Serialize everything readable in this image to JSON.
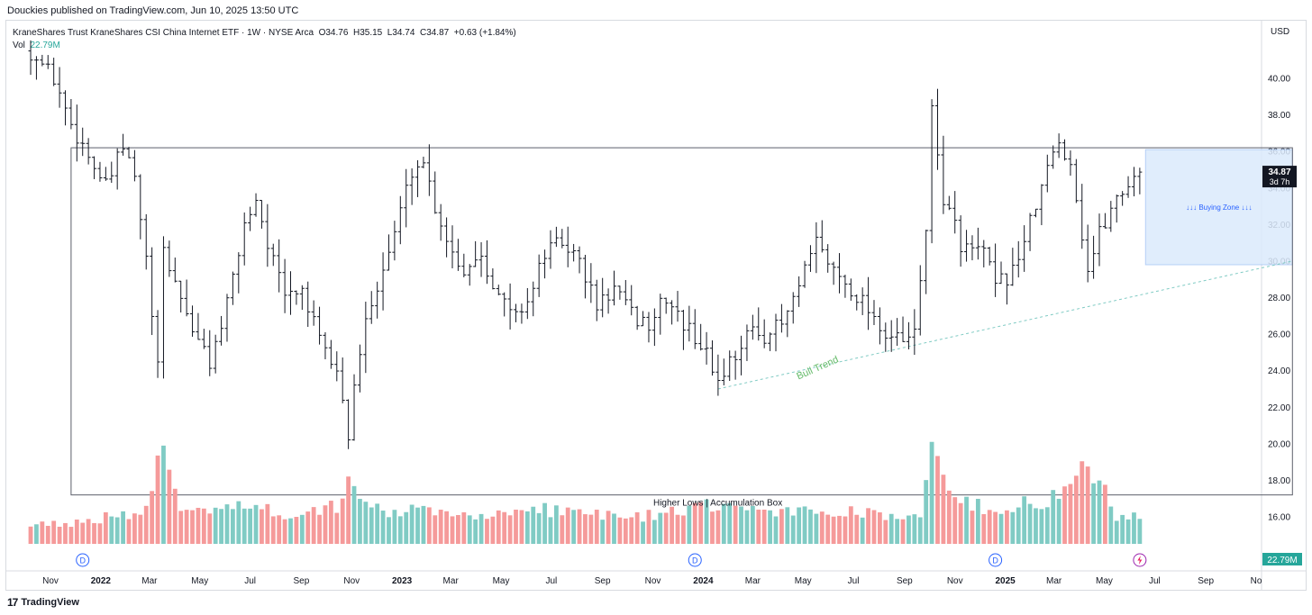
{
  "publisher_line": "Douckies published on TradingView.com, Jun 10, 2025 13:50 UTC",
  "legend": {
    "symbol": "KraneShares Trust KraneShares CSI China Internet ETF · 1W · NYSE Arca",
    "open_label": "O",
    "open": "34.76",
    "high_label": "H",
    "high": "35.15",
    "low_label": "L",
    "low": "34.74",
    "close_label": "C",
    "close": "34.87",
    "change": "+0.63 (+1.84%)",
    "vol_label": "Vol",
    "vol_value": "22.79M"
  },
  "currency": "USD",
  "price_tag": {
    "value": "34.87",
    "countdown": "3d 7h"
  },
  "vol_tag": "22.79M",
  "annotations": {
    "bull_trend": "Bull Trend",
    "buying_zone": "↓↓↓ Buying Zone ↓↓↓",
    "accumulation_box": "Higher Lows | Accumulation Box"
  },
  "brand": "TradingView",
  "colors": {
    "up_volume": "#80cbc4",
    "down_volume": "#f59a9a",
    "bars": "#131722",
    "bull_trend": "#66bb6a",
    "buying_zone": "#dbeafc",
    "buying_zone_text": "#2962ff"
  },
  "chart_data": {
    "type": "ohlc",
    "interval": "1W",
    "ylim": [
      13.6,
      43.2
    ],
    "y_ticks": [
      16,
      18,
      20,
      22,
      24,
      26,
      28,
      30,
      32,
      34,
      36,
      38,
      40
    ],
    "x_ticks": [
      {
        "label": "Nov",
        "date": "2021-11-01",
        "bold": false
      },
      {
        "label": "2022",
        "date": "2022-01-01",
        "bold": true
      },
      {
        "label": "Mar",
        "date": "2022-03-01",
        "bold": false
      },
      {
        "label": "May",
        "date": "2022-05-01",
        "bold": false
      },
      {
        "label": "Jul",
        "date": "2022-07-01",
        "bold": false
      },
      {
        "label": "Sep",
        "date": "2022-09-01",
        "bold": false
      },
      {
        "label": "Nov",
        "date": "2022-11-01",
        "bold": false
      },
      {
        "label": "2023",
        "date": "2023-01-01",
        "bold": true
      },
      {
        "label": "Mar",
        "date": "2023-03-01",
        "bold": false
      },
      {
        "label": "May",
        "date": "2023-05-01",
        "bold": false
      },
      {
        "label": "Jul",
        "date": "2023-07-01",
        "bold": false
      },
      {
        "label": "Sep",
        "date": "2023-09-01",
        "bold": false
      },
      {
        "label": "Nov",
        "date": "2023-11-01",
        "bold": false
      },
      {
        "label": "2024",
        "date": "2024-01-01",
        "bold": true
      },
      {
        "label": "Mar",
        "date": "2024-03-01",
        "bold": false
      },
      {
        "label": "May",
        "date": "2024-05-01",
        "bold": false
      },
      {
        "label": "Jul",
        "date": "2024-07-01",
        "bold": false
      },
      {
        "label": "Sep",
        "date": "2024-09-01",
        "bold": false
      },
      {
        "label": "Nov",
        "date": "2024-11-01",
        "bold": false
      },
      {
        "label": "2025",
        "date": "2025-01-01",
        "bold": true
      },
      {
        "label": "Mar",
        "date": "2025-03-01",
        "bold": false
      },
      {
        "label": "May",
        "date": "2025-05-01",
        "bold": false
      },
      {
        "label": "Jul",
        "date": "2025-07-01",
        "bold": false
      },
      {
        "label": "Sep",
        "date": "2025-09-01",
        "bold": false
      },
      {
        "label": "No",
        "date": "2025-11-01",
        "bold": false
      }
    ],
    "price_anchors": [
      [
        "2021-10-08",
        41.5
      ],
      [
        "2021-11-05",
        40.0
      ],
      [
        "2021-11-26",
        37.5
      ],
      [
        "2021-12-17",
        35.8
      ],
      [
        "2022-01-07",
        34.0
      ],
      [
        "2022-01-28",
        36.2
      ],
      [
        "2022-02-11",
        34.5
      ],
      [
        "2022-02-25",
        30.0
      ],
      [
        "2022-03-11",
        24.0
      ],
      [
        "2022-03-18",
        30.5
      ],
      [
        "2022-04-08",
        28.0
      ],
      [
        "2022-04-29",
        25.5
      ],
      [
        "2022-05-13",
        24.5
      ],
      [
        "2022-06-03",
        27.5
      ],
      [
        "2022-06-24",
        32.0
      ],
      [
        "2022-07-08",
        33.5
      ],
      [
        "2022-07-22",
        31.0
      ],
      [
        "2022-08-12",
        28.0
      ],
      [
        "2022-09-02",
        28.5
      ],
      [
        "2022-09-23",
        25.5
      ],
      [
        "2022-10-14",
        24.0
      ],
      [
        "2022-10-28",
        20.5
      ],
      [
        "2022-11-11",
        25.0
      ],
      [
        "2022-11-25",
        28.0
      ],
      [
        "2022-12-16",
        30.5
      ],
      [
        "2023-01-13",
        35.0
      ],
      [
        "2023-01-27",
        35.5
      ],
      [
        "2023-02-10",
        33.0
      ],
      [
        "2023-03-03",
        30.5
      ],
      [
        "2023-03-17",
        29.5
      ],
      [
        "2023-04-07",
        30.5
      ],
      [
        "2023-04-28",
        28.0
      ],
      [
        "2023-05-19",
        27.0
      ],
      [
        "2023-06-09",
        28.5
      ],
      [
        "2023-06-23",
        30.5
      ],
      [
        "2023-07-14",
        31.0
      ],
      [
        "2023-08-04",
        30.0
      ],
      [
        "2023-08-25",
        27.5
      ],
      [
        "2023-09-15",
        28.5
      ],
      [
        "2023-10-06",
        27.0
      ],
      [
        "2023-10-27",
        26.5
      ],
      [
        "2023-11-17",
        28.0
      ],
      [
        "2023-12-08",
        26.5
      ],
      [
        "2023-12-29",
        25.5
      ],
      [
        "2024-01-19",
        23.5
      ],
      [
        "2024-02-02",
        24.5
      ],
      [
        "2024-02-23",
        26.0
      ],
      [
        "2024-03-15",
        26.0
      ],
      [
        "2024-04-05",
        26.5
      ],
      [
        "2024-04-26",
        28.5
      ],
      [
        "2024-05-17",
        31.0
      ],
      [
        "2024-06-07",
        29.5
      ],
      [
        "2024-06-28",
        28.5
      ],
      [
        "2024-07-19",
        27.5
      ],
      [
        "2024-08-09",
        26.0
      ],
      [
        "2024-08-30",
        25.5
      ],
      [
        "2024-09-13",
        26.0
      ],
      [
        "2024-09-27",
        32.0
      ],
      [
        "2024-10-04",
        38.0
      ],
      [
        "2024-10-18",
        33.5
      ],
      [
        "2024-11-08",
        31.0
      ],
      [
        "2024-11-22",
        30.5
      ],
      [
        "2024-12-06",
        30.5
      ],
      [
        "2024-12-20",
        28.5
      ],
      [
        "2025-01-10",
        29.5
      ],
      [
        "2025-01-31",
        32.0
      ],
      [
        "2025-02-21",
        35.0
      ],
      [
        "2025-03-07",
        36.5
      ],
      [
        "2025-03-21",
        35.5
      ],
      [
        "2025-04-11",
        29.5
      ],
      [
        "2025-04-25",
        31.5
      ],
      [
        "2025-05-16",
        33.5
      ],
      [
        "2025-06-06",
        34.6
      ],
      [
        "2025-06-13",
        34.87
      ]
    ],
    "volume_anchors": [
      [
        "2021-10-08",
        0.3
      ],
      [
        "2021-12-03",
        0.35
      ],
      [
        "2022-02-25",
        0.55
      ],
      [
        "2022-03-18",
        1.8
      ],
      [
        "2022-04-08",
        0.6
      ],
      [
        "2022-06-10",
        0.7
      ],
      [
        "2022-08-12",
        0.5
      ],
      [
        "2022-10-21",
        0.7
      ],
      [
        "2022-10-28",
        1.1
      ],
      [
        "2022-11-25",
        0.6
      ],
      [
        "2023-01-20",
        0.55
      ],
      [
        "2023-04-07",
        0.5
      ],
      [
        "2023-07-07",
        0.6
      ],
      [
        "2023-10-06",
        0.45
      ],
      [
        "2023-12-29",
        0.6
      ],
      [
        "2024-01-26",
        0.75
      ],
      [
        "2024-03-15",
        0.5
      ],
      [
        "2024-05-10",
        0.6
      ],
      [
        "2024-08-16",
        0.5
      ],
      [
        "2024-09-20",
        0.4
      ],
      [
        "2024-10-04",
        2.0
      ],
      [
        "2024-10-18",
        1.2
      ],
      [
        "2024-12-06",
        0.55
      ],
      [
        "2025-02-07",
        0.8
      ],
      [
        "2025-03-07",
        0.8
      ],
      [
        "2025-04-11",
        1.6
      ],
      [
        "2025-05-16",
        0.5
      ],
      [
        "2025-06-13",
        0.45
      ]
    ],
    "volume_unit": "relative",
    "drawings": {
      "accumulation_box": {
        "from": "2021-11-26",
        "to": "2025-12-15",
        "top": 36.2,
        "bottom": 17.2
      },
      "resistance_line": {
        "from": "2021-11-26",
        "to": "2025-12-15",
        "value": 36.2
      },
      "bull_trend_line": {
        "from": "2024-01-19",
        "value_from": 23.0,
        "to": "2025-12-15",
        "value_to": 30.0
      },
      "buying_zone": {
        "from": "2025-06-20",
        "to": "2025-12-15",
        "top": 36.1,
        "bottom": 29.8
      }
    },
    "dividend_markers": [
      "2021-12-10",
      "2023-12-22",
      "2024-12-20"
    ],
    "last_marker": "2025-06-13",
    "last_close": 34.87
  }
}
